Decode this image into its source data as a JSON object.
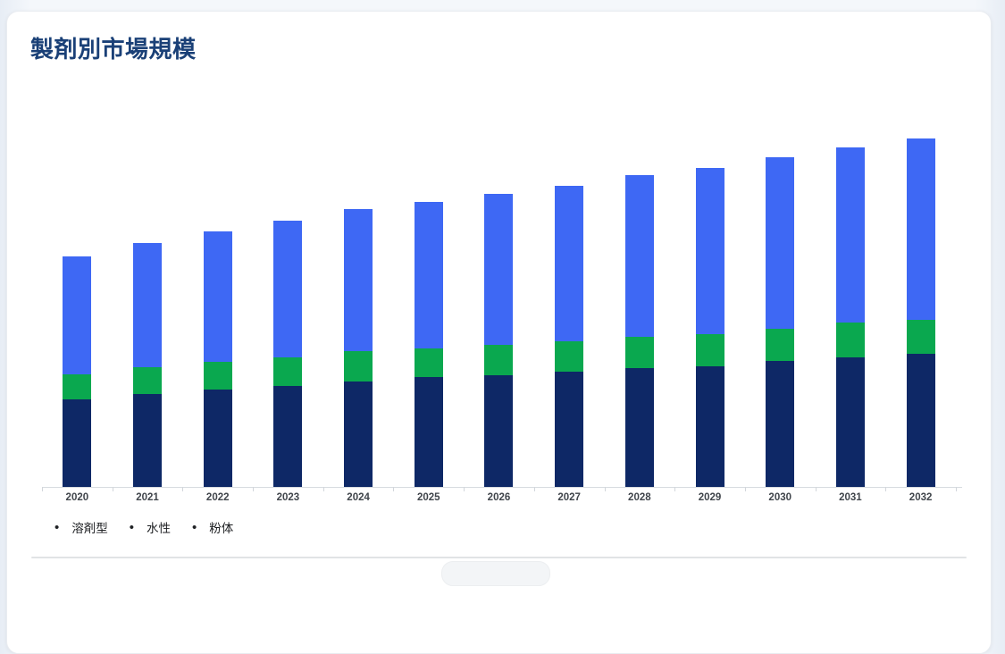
{
  "page": {
    "title": "製剤別市場規模"
  },
  "legend": {
    "bullet": "•",
    "items": [
      {
        "label": "溶剤型"
      },
      {
        "label": "水性"
      },
      {
        "label": "粉体"
      }
    ]
  },
  "colors": {
    "title": "#1a4077",
    "series_solvent": "#0e2866",
    "series_water": "#0aa84f",
    "series_powder": "#3e68f4",
    "axis": "#d7dbe0",
    "x_label": "#40454b",
    "legend_text": "#1c1e21",
    "card_bg": "#ffffff",
    "page_bg": "#eef2f8"
  },
  "chart_data": {
    "type": "bar",
    "stacked": true,
    "title": "製剤別市場規模",
    "xlabel": "",
    "ylabel": "",
    "y_axis_visible": false,
    "grid": false,
    "legend_position": "bottom",
    "ylim": [
      0,
      410
    ],
    "categories": [
      "2020",
      "2021",
      "2022",
      "2023",
      "2024",
      "2025",
      "2026",
      "2027",
      "2028",
      "2029",
      "2030",
      "2031",
      "2032"
    ],
    "series": [
      {
        "name": "溶剤型",
        "color": "#0e2866",
        "values": [
          98,
          104,
          109,
          113,
          118,
          123,
          125,
          129,
          133,
          135,
          141,
          145,
          149
        ]
      },
      {
        "name": "水性",
        "color": "#0aa84f",
        "values": [
          28,
          30,
          31,
          32,
          34,
          32,
          34,
          34,
          35,
          36,
          36,
          39,
          38
        ]
      },
      {
        "name": "粉体",
        "color": "#3e68f4",
        "values": [
          132,
          139,
          146,
          153,
          159,
          164,
          169,
          174,
          181,
          186,
          192,
          196,
          203
        ]
      }
    ]
  }
}
